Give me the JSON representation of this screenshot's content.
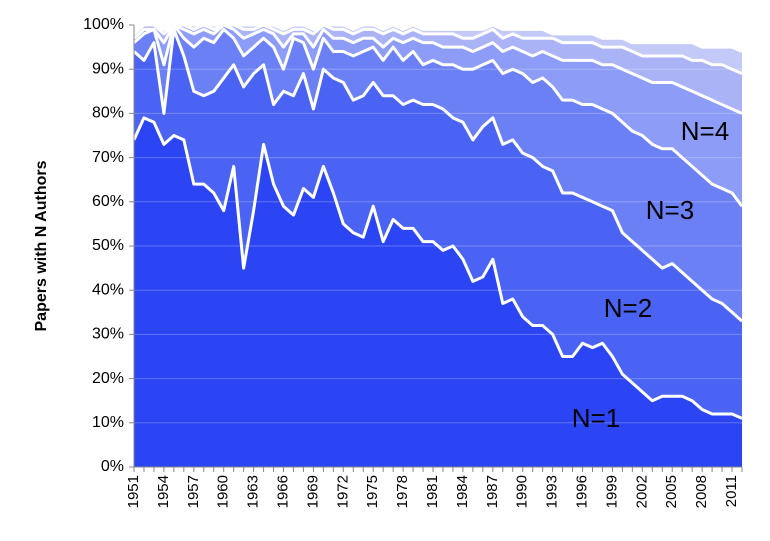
{
  "chart_data": {
    "type": "stacked_area",
    "y_label": "Papers with N Authors",
    "categories": [
      1951,
      null,
      null,
      1954,
      null,
      null,
      1957,
      null,
      null,
      1960,
      null,
      null,
      1963,
      null,
      null,
      1966,
      null,
      null,
      1969,
      null,
      null,
      1972,
      null,
      null,
      1975,
      null,
      null,
      1978,
      null,
      null,
      1981,
      null,
      null,
      1984,
      null,
      null,
      1987,
      null,
      null,
      1990,
      null,
      null,
      1993,
      null,
      null,
      1996,
      null,
      null,
      1999,
      null,
      null,
      2002,
      null,
      null,
      2005,
      null,
      null,
      2008,
      null,
      null,
      2011,
      null
    ],
    "series": [
      {
        "name": "N=1",
        "color": "#2b45f4",
        "values": [
          74,
          79,
          78,
          73,
          75,
          74,
          64,
          64,
          62,
          58,
          68,
          45,
          58,
          73,
          64,
          59,
          57,
          63,
          61,
          68,
          62,
          55,
          53,
          52,
          59,
          51,
          56,
          54,
          54,
          51,
          51,
          49,
          50,
          47,
          42,
          43,
          47,
          37,
          38,
          34,
          32,
          32,
          30,
          25,
          25,
          28,
          27,
          28,
          25,
          21,
          19,
          17,
          15,
          16,
          16,
          16,
          15,
          13,
          12,
          12,
          12,
          11
        ]
      },
      {
        "name": "N=2",
        "color": "#4b63f3",
        "values": [
          20,
          13,
          18,
          7,
          24,
          19,
          21,
          20,
          23,
          30,
          23,
          41,
          31,
          18,
          18,
          26,
          27,
          26,
          20,
          22,
          26,
          32,
          30,
          32,
          28,
          33,
          28,
          28,
          29,
          31,
          31,
          32,
          29,
          31,
          32,
          34,
          32,
          36,
          36,
          37,
          38,
          36,
          37,
          37,
          37,
          33,
          33,
          31,
          33,
          32,
          32,
          32,
          32,
          29,
          30,
          28,
          27,
          27,
          26,
          25,
          23,
          22
        ]
      },
      {
        "name": "N=3",
        "color": "#6c80f5",
        "values": [
          2,
          6,
          3,
          11,
          1,
          4,
          10,
          13,
          11,
          11,
          6,
          7,
          6,
          6,
          13,
          5,
          13,
          7,
          9,
          7,
          6,
          7,
          10,
          10,
          8,
          8,
          11,
          10,
          11,
          9,
          10,
          10,
          12,
          12,
          16,
          14,
          13,
          16,
          16,
          18,
          17,
          20,
          19,
          21,
          21,
          21,
          22,
          22,
          22,
          25,
          25,
          26,
          26,
          27,
          26,
          26,
          26,
          26,
          26,
          26,
          27,
          26
        ]
      },
      {
        "name": "N=4",
        "color": "#8d9cf6",
        "values": [
          1,
          1,
          0,
          5,
          0,
          2,
          3,
          2,
          2,
          1,
          2,
          4,
          3,
          2,
          3,
          5,
          1,
          2,
          5,
          2,
          3,
          3,
          3,
          3,
          2,
          3,
          2,
          4,
          3,
          5,
          4,
          4,
          4,
          5,
          4,
          4,
          4,
          5,
          5,
          5,
          6,
          6,
          7,
          9,
          9,
          10,
          10,
          10,
          11,
          12,
          13,
          13,
          14,
          15,
          15,
          16,
          17,
          18,
          19,
          19,
          19,
          21
        ]
      },
      {
        "color": "#a9b3f6",
        "values": [
          1,
          1,
          1,
          2,
          0,
          1,
          1,
          1,
          1,
          0,
          1,
          2,
          1,
          1,
          1,
          3,
          1,
          1,
          3,
          1,
          2,
          2,
          2,
          2,
          2,
          3,
          2,
          2,
          2,
          2,
          2,
          3,
          3,
          2,
          3,
          3,
          3,
          3,
          3,
          3,
          4,
          3,
          4,
          4,
          4,
          4,
          4,
          4,
          4,
          5,
          5,
          5,
          6,
          6,
          6,
          7,
          7,
          8,
          8,
          9,
          9,
          9
        ]
      },
      {
        "color": "#c4caf8",
        "values": [
          1,
          0,
          0,
          1,
          0,
          0,
          1,
          0,
          1,
          0,
          0,
          1,
          1,
          0,
          1,
          1,
          1,
          1,
          1,
          0,
          1,
          1,
          1,
          1,
          1,
          1,
          1,
          1,
          1,
          1,
          1,
          1,
          1,
          2,
          2,
          1,
          1,
          2,
          1,
          2,
          2,
          2,
          1,
          2,
          2,
          2,
          2,
          2,
          2,
          2,
          2,
          3,
          3,
          3,
          3,
          3,
          4,
          3,
          4,
          4,
          5,
          5
        ]
      }
    ],
    "ylim": [
      0,
      100
    ],
    "yticks": [
      {
        "value": 0,
        "label": "0%"
      },
      {
        "value": 10,
        "label": "10%"
      },
      {
        "value": 20,
        "label": "20%"
      },
      {
        "value": 30,
        "label": "30%"
      },
      {
        "value": 40,
        "label": "40%"
      },
      {
        "value": 50,
        "label": "50%"
      },
      {
        "value": 60,
        "label": "60%"
      },
      {
        "value": 70,
        "label": "70%"
      },
      {
        "value": 80,
        "label": "80%"
      },
      {
        "value": 90,
        "label": "90%"
      },
      {
        "value": 100,
        "label": "100%"
      }
    ],
    "grid": true
  }
}
